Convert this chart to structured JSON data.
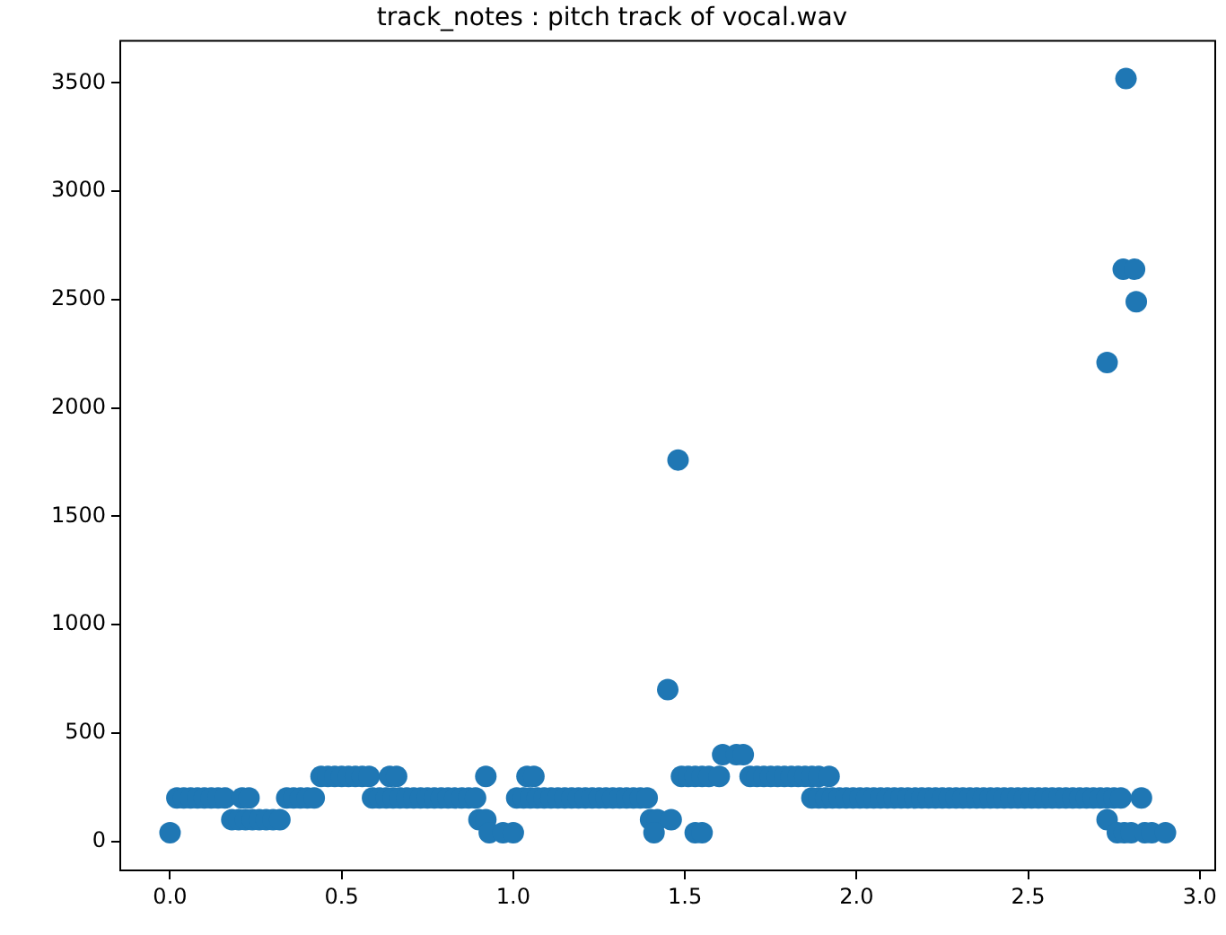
{
  "chart_data": {
    "type": "scatter",
    "title": "track_notes : pitch track of vocal.wav",
    "color": "#1f77b4",
    "marker": "circle",
    "grid": false,
    "legend": false,
    "x": [
      0,
      0.02,
      0.04,
      0.06,
      0.08,
      0.1,
      0.12,
      0.14,
      0.16,
      0.18,
      0.2,
      0.21,
      0.23,
      0.22,
      0.24,
      0.26,
      0.28,
      0.3,
      0.32,
      0.34,
      0.36,
      0.38,
      0.4,
      0.42,
      0.44,
      0.46,
      0.48,
      0.5,
      0.52,
      0.54,
      0.56,
      0.58,
      0.59,
      0.61,
      0.63,
      0.64,
      0.66,
      0.65,
      0.67,
      0.69,
      0.71,
      0.73,
      0.75,
      0.77,
      0.79,
      0.81,
      0.83,
      0.85,
      0.87,
      0.89,
      0.9,
      0.92,
      0.92,
      0.93,
      0.97,
      1.0,
      1.01,
      1.03,
      1.04,
      1.06,
      1.05,
      1.07,
      1.09,
      1.11,
      1.13,
      1.15,
      1.17,
      1.19,
      1.21,
      1.23,
      1.25,
      1.27,
      1.29,
      1.31,
      1.33,
      1.35,
      1.37,
      1.39,
      1.4,
      1.42,
      1.46,
      1.41,
      1.53,
      1.55,
      1.45,
      1.48,
      1.49,
      1.51,
      1.53,
      1.55,
      1.57,
      1.6,
      1.61,
      1.65,
      1.67,
      1.69,
      1.71,
      1.73,
      1.75,
      1.77,
      1.79,
      1.81,
      1.83,
      1.85,
      1.87,
      1.89,
      1.92,
      1.87,
      1.89,
      1.91,
      1.93,
      1.95,
      1.97,
      1.99,
      2.01,
      2.03,
      2.05,
      2.07,
      2.09,
      2.11,
      2.13,
      2.15,
      2.17,
      2.19,
      2.21,
      2.23,
      2.25,
      2.27,
      2.29,
      2.31,
      2.33,
      2.35,
      2.37,
      2.39,
      2.41,
      2.43,
      2.45,
      2.47,
      2.49,
      2.51,
      2.53,
      2.55,
      2.57,
      2.59,
      2.61,
      2.63,
      2.65,
      2.67,
      2.69,
      2.71,
      2.73,
      2.75,
      2.73,
      2.73,
      2.76,
      2.78,
      2.8,
      2.84,
      2.86,
      2.9,
      2.77,
      2.785,
      2.777,
      2.81,
      2.815,
      2.83
    ],
    "values": [
      40,
      200,
      200,
      200,
      200,
      200,
      200,
      200,
      200,
      100,
      100,
      200,
      200,
      100,
      100,
      100,
      100,
      100,
      100,
      200,
      200,
      200,
      200,
      200,
      300,
      300,
      300,
      300,
      300,
      300,
      300,
      300,
      200,
      200,
      200,
      300,
      300,
      200,
      200,
      200,
      200,
      200,
      200,
      200,
      200,
      200,
      200,
      200,
      200,
      200,
      100,
      100,
      300,
      40,
      40,
      40,
      200,
      200,
      300,
      300,
      200,
      200,
      200,
      200,
      200,
      200,
      200,
      200,
      200,
      200,
      200,
      200,
      200,
      200,
      200,
      200,
      200,
      200,
      100,
      100,
      100,
      40,
      40,
      40,
      700,
      1760,
      300,
      300,
      300,
      300,
      300,
      300,
      400,
      400,
      400,
      300,
      300,
      300,
      300,
      300,
      300,
      300,
      300,
      300,
      300,
      300,
      300,
      200,
      200,
      200,
      200,
      200,
      200,
      200,
      200,
      200,
      200,
      200,
      200,
      200,
      200,
      200,
      200,
      200,
      200,
      200,
      200,
      200,
      200,
      200,
      200,
      200,
      200,
      200,
      200,
      200,
      200,
      200,
      200,
      200,
      200,
      200,
      200,
      200,
      200,
      200,
      200,
      200,
      200,
      200,
      200,
      200,
      100,
      2210,
      40,
      40,
      40,
      40,
      40,
      40,
      200,
      3520,
      2640,
      2640,
      2490,
      200
    ],
    "xlim": [
      -0.145,
      3.045
    ],
    "ylim": [
      -134,
      3694
    ],
    "xticks": [
      {
        "value": 0,
        "label": "0.0"
      },
      {
        "value": 0.5,
        "label": "0.5"
      },
      {
        "value": 1,
        "label": "1.0"
      },
      {
        "value": 1.5,
        "label": "1.5"
      },
      {
        "value": 2,
        "label": "2.0"
      },
      {
        "value": 2.5,
        "label": "2.5"
      },
      {
        "value": 3,
        "label": "3.0"
      }
    ],
    "yticks": [
      0,
      500,
      1000,
      1500,
      2000,
      2500,
      3000,
      3500
    ]
  }
}
